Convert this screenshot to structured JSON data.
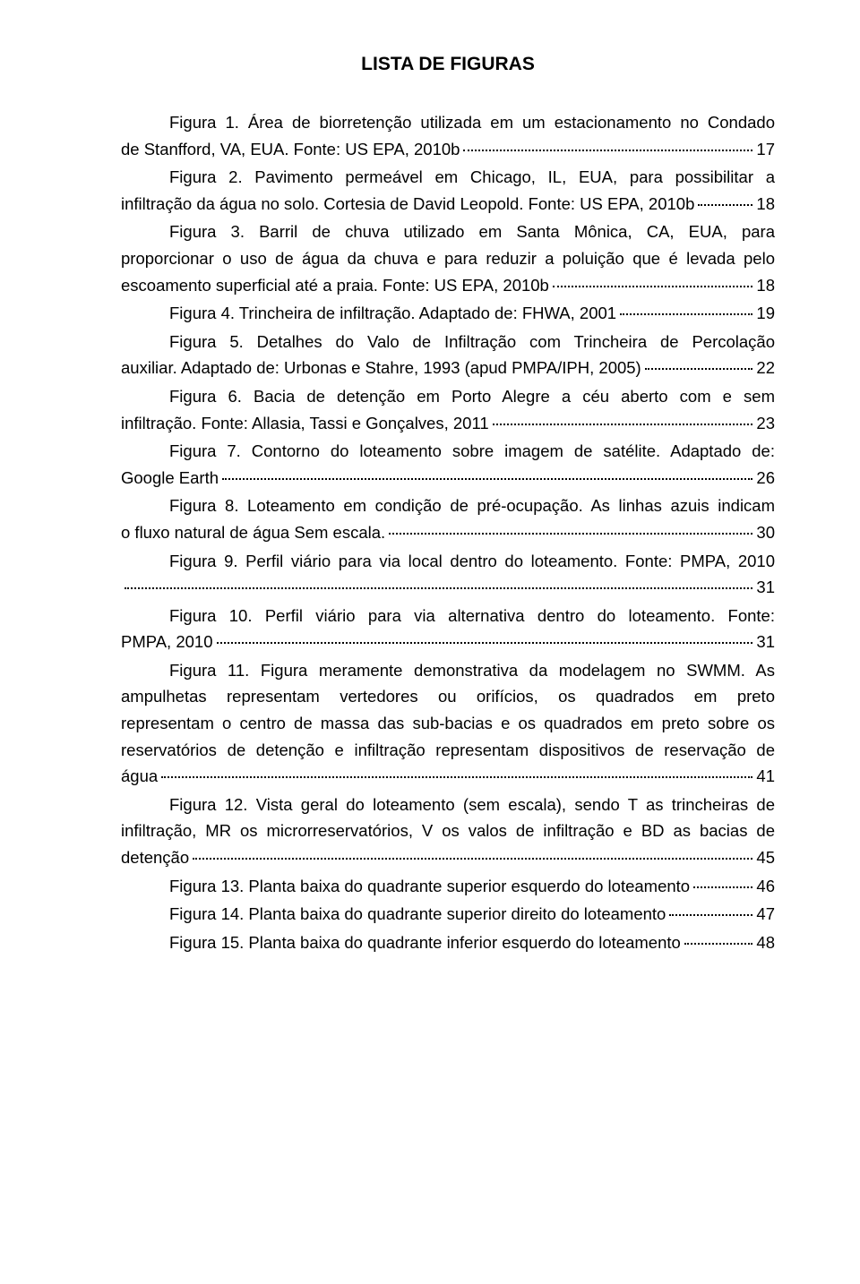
{
  "title": "LISTA DE FIGURAS",
  "entries": [
    {
      "lines": [
        "Figura 1. Área de biorretenção utilizada em um estacionamento no Condado"
      ],
      "last": "de Stanfford, VA, EUA. Fonte: US EPA, 2010b",
      "page": "17"
    },
    {
      "lines": [
        "Figura 2. Pavimento permeável em Chicago, IL, EUA, para possibilitar a"
      ],
      "last": "infiltração da água no solo. Cortesia de David Leopold. Fonte: US EPA, 2010b",
      "page": "18"
    },
    {
      "lines": [
        "Figura 3. Barril de chuva utilizado em Santa Mônica, CA, EUA, para",
        "proporcionar o uso de água da chuva e para reduzir a poluição que é levada pelo"
      ],
      "last": "escoamento superficial até a praia. Fonte: US EPA, 2010b",
      "page": "18"
    },
    {
      "lines": [],
      "last": "Figura 4. Trincheira de infiltração. Adaptado de: FHWA, 2001",
      "page": "19",
      "indent": true
    },
    {
      "lines": [
        "Figura 5. Detalhes do Valo de Infiltração com Trincheira de Percolação"
      ],
      "last": "auxiliar. Adaptado de: Urbonas e Stahre, 1993 (apud PMPA/IPH, 2005)",
      "page": "22"
    },
    {
      "lines": [
        "Figura 6. Bacia de detenção em Porto Alegre a céu aberto com e sem"
      ],
      "last": "infiltração. Fonte: Allasia, Tassi e Gonçalves, 2011",
      "page": "23"
    },
    {
      "lines": [
        "Figura 7. Contorno do loteamento sobre imagem de satélite. Adaptado de:"
      ],
      "last": "Google Earth",
      "page": "26"
    },
    {
      "lines": [
        "Figura 8. Loteamento em condição de pré-ocupação. As linhas azuis indicam"
      ],
      "last": "o fluxo natural de água Sem escala.",
      "page": "30"
    },
    {
      "lines": [
        "Figura 9. Perfil viário para via local dentro do loteamento. Fonte: PMPA, 2010"
      ],
      "last": "",
      "page": "31"
    },
    {
      "lines": [
        "Figura 10. Perfil viário para via alternativa dentro do loteamento. Fonte:"
      ],
      "last": "PMPA, 2010",
      "page": "31"
    },
    {
      "lines": [
        "Figura 11. Figura meramente demonstrativa da modelagem no SWMM. As",
        "ampulhetas representam vertedores ou orifícios, os quadrados em preto",
        "representam o centro de massa das sub-bacias e os quadrados em preto sobre os",
        "reservatórios de detenção e infiltração representam dispositivos de reservação de"
      ],
      "last": "água",
      "page": "41"
    },
    {
      "lines": [
        "Figura 12. Vista geral do loteamento (sem escala), sendo T as trincheiras de",
        "infiltração, MR os microrreservatórios, V os valos de infiltração e BD as bacias de"
      ],
      "last": "detenção",
      "page": "45"
    },
    {
      "lines": [],
      "last": "Figura 13. Planta baixa do quadrante superior esquerdo do loteamento",
      "page": "46",
      "indent": true
    },
    {
      "lines": [],
      "last": "Figura 14. Planta baixa do quadrante superior direito do loteamento",
      "page": "47",
      "indent": true
    },
    {
      "lines": [],
      "last": "Figura 15. Planta baixa do quadrante inferior esquerdo do loteamento",
      "page": "48",
      "indent": true
    }
  ]
}
